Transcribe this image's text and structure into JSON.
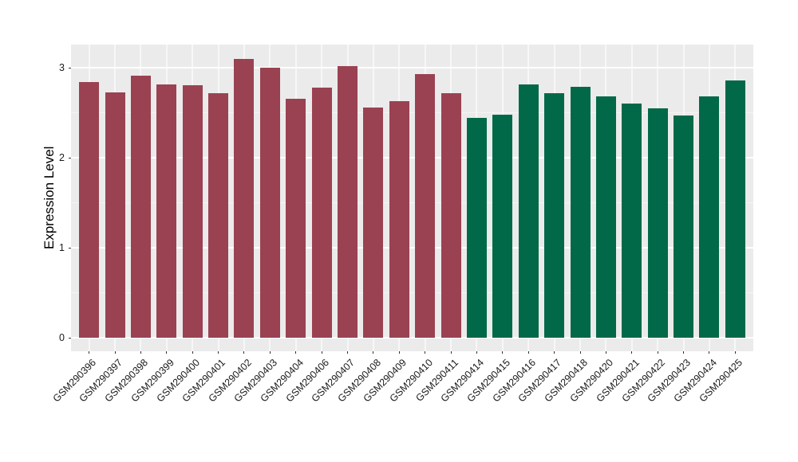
{
  "figure": {
    "background": "#FFFFFF",
    "panel_background": "#EBEBEB",
    "major_grid_color": "#FFFFFF",
    "minor_grid_color": "#F5F5F5",
    "tick_color": "#333333",
    "text_color": "#1a1a1a"
  },
  "chart_data": {
    "type": "bar",
    "title": "",
    "xlabel": "",
    "ylabel": "Expression Level",
    "ylim": [
      0,
      3.26
    ],
    "yticks": [
      0,
      1,
      2,
      3
    ],
    "ytick_labels": [
      "0",
      "1",
      "2",
      "3"
    ],
    "yticks_minor": [
      0.5,
      1.5,
      2.5
    ],
    "grid": "major and minor horizontal white lines, vertical white lines at each category, on gray panel",
    "legend": "none",
    "x_label_rotation_deg": 45,
    "categories": [
      "GSM290396",
      "GSM290397",
      "GSM290398",
      "GSM290399",
      "GSM290400",
      "GSM290401",
      "GSM290402",
      "GSM290403",
      "GSM290404",
      "GSM290406",
      "GSM290407",
      "GSM290408",
      "GSM290409",
      "GSM290410",
      "GSM290411",
      "GSM290414",
      "GSM290415",
      "GSM290416",
      "GSM290417",
      "GSM290418",
      "GSM290420",
      "GSM290421",
      "GSM290422",
      "GSM290423",
      "GSM290424",
      "GSM290425"
    ],
    "values": [
      2.84,
      2.73,
      2.91,
      2.82,
      2.81,
      2.72,
      3.1,
      3.0,
      2.66,
      2.78,
      3.02,
      2.56,
      2.63,
      2.93,
      2.72,
      2.44,
      2.48,
      2.82,
      2.72,
      2.79,
      2.68,
      2.6,
      2.55,
      2.47,
      2.68,
      2.86
    ],
    "groups": [
      "maroon",
      "maroon",
      "maroon",
      "maroon",
      "maroon",
      "maroon",
      "maroon",
      "maroon",
      "maroon",
      "maroon",
      "maroon",
      "maroon",
      "maroon",
      "maroon",
      "maroon",
      "green",
      "green",
      "green",
      "green",
      "green",
      "green",
      "green",
      "green",
      "green",
      "green",
      "green"
    ],
    "group_colors": {
      "maroon": "#9A4252",
      "green": "#026948"
    }
  }
}
